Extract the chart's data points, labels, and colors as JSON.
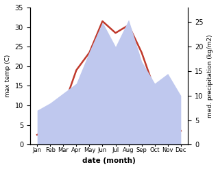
{
  "months": [
    "Jan",
    "Feb",
    "Mar",
    "Apr",
    "May",
    "Jun",
    "Jul",
    "Aug",
    "Sep",
    "Oct",
    "Nov",
    "Dec"
  ],
  "temp": [
    2.5,
    4.0,
    9.5,
    19.0,
    23.5,
    31.5,
    28.5,
    30.5,
    23.5,
    14.0,
    8.0,
    3.5
  ],
  "precip": [
    7.0,
    8.5,
    10.5,
    12.5,
    19.0,
    25.0,
    20.0,
    25.5,
    17.0,
    12.5,
    14.5,
    10.0
  ],
  "temp_color": "#c0392b",
  "precip_fill_color": "#bfc8ee",
  "temp_ylim": [
    0,
    35
  ],
  "precip_ylim": [
    0,
    28
  ],
  "temp_yticks": [
    0,
    5,
    10,
    15,
    20,
    25,
    30,
    35
  ],
  "precip_yticks": [
    0,
    5,
    10,
    15,
    20,
    25
  ],
  "xlabel": "date (month)",
  "ylabel_left": "max temp (C)",
  "ylabel_right": "med. precipitation (kg/m2)",
  "line_width": 1.8,
  "background_color": "#ffffff"
}
